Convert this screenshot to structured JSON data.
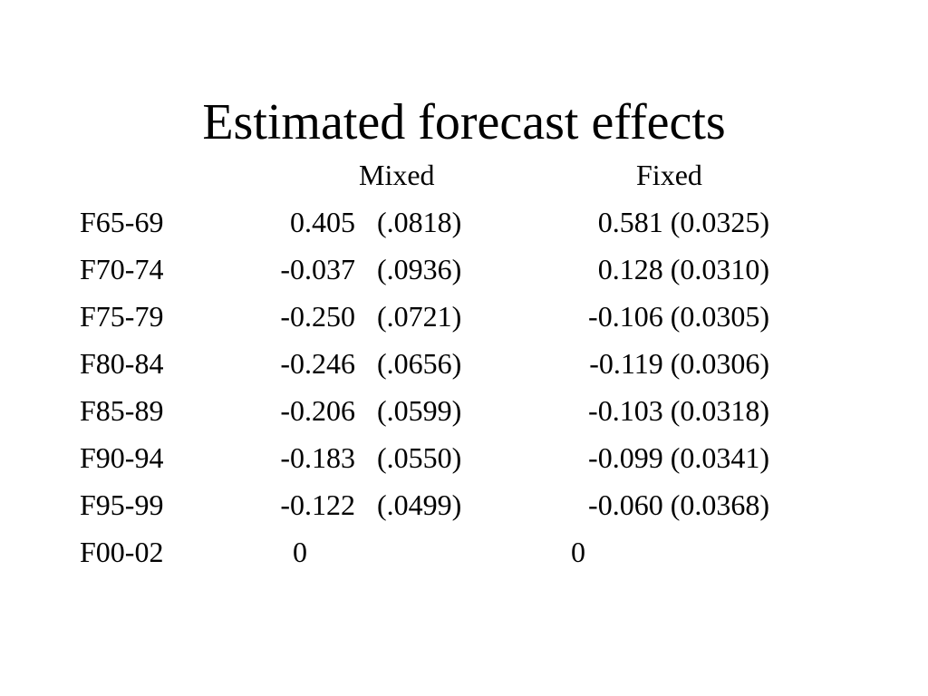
{
  "title": "Estimated forecast effects",
  "columns": {
    "mixed": "Mixed",
    "fixed": "Fixed"
  },
  "rows": [
    {
      "label": "F65-69",
      "mixed_est": "0.405",
      "mixed_se": "(.0818)",
      "fixed": "0.581 (0.0325)"
    },
    {
      "label": "F70-74",
      "mixed_est": "-0.037",
      "mixed_se": "(.0936)",
      "fixed": "0.128 (0.0310)"
    },
    {
      "label": "F75-79",
      "mixed_est": "-0.250",
      "mixed_se": "(.0721)",
      "fixed": "-0.106 (0.0305)"
    },
    {
      "label": "F80-84",
      "mixed_est": "-0.246",
      "mixed_se": "(.0656)",
      "fixed": "-0.119 (0.0306)"
    },
    {
      "label": "F85-89",
      "mixed_est": "-0.206",
      "mixed_se": "(.0599)",
      "fixed": "-0.103 (0.0318)"
    },
    {
      "label": "F90-94",
      "mixed_est": "-0.183",
      "mixed_se": "(.0550)",
      "fixed": "-0.099 (0.0341)"
    },
    {
      "label": "F95-99",
      "mixed_est": "-0.122",
      "mixed_se": "(.0499)",
      "fixed": "-0.060 (0.0368)"
    },
    {
      "label": "F00-02",
      "mixed_est": "0",
      "mixed_se": "",
      "fixed": "0"
    }
  ]
}
